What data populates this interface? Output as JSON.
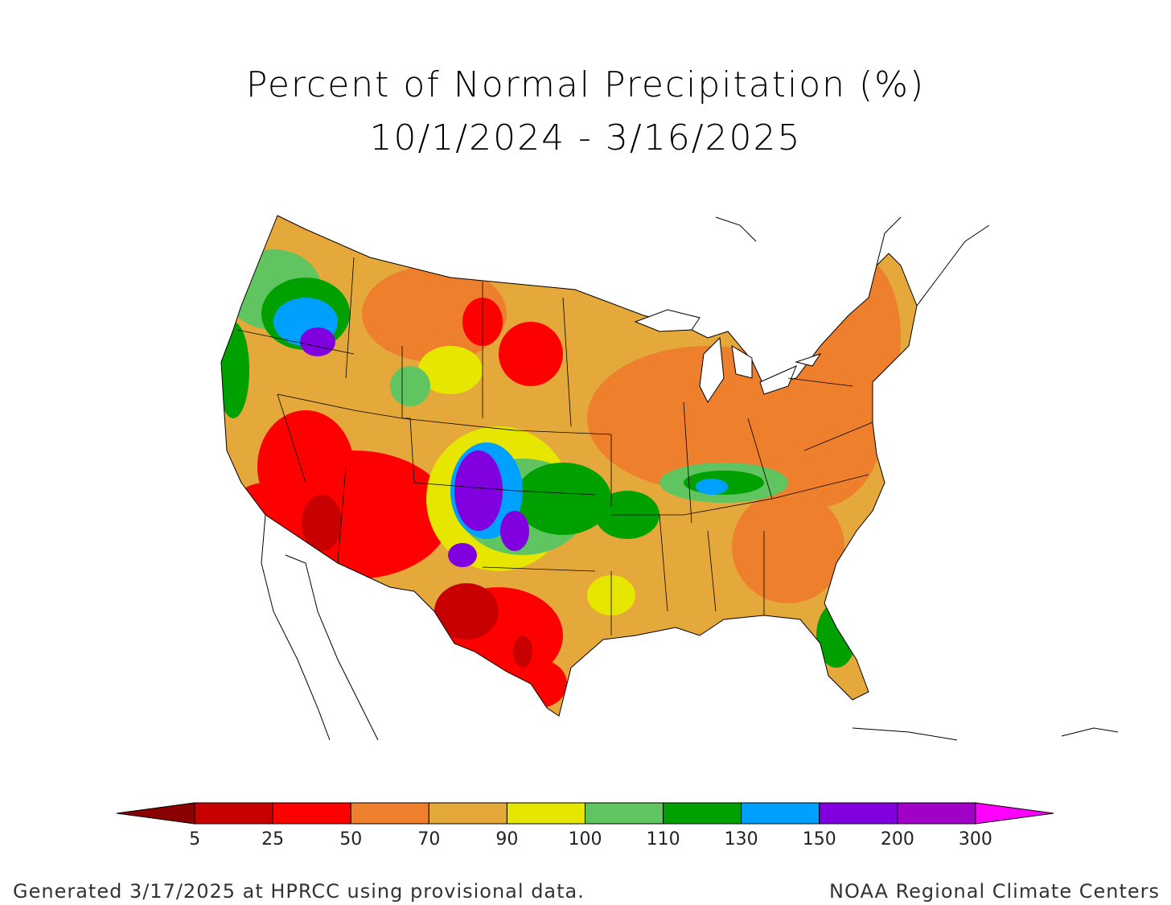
{
  "title": "Percent of Normal Precipitation (%)",
  "subtitle": "10/1/2024 - 3/16/2025",
  "footer": {
    "left": "Generated 3/17/2025 at HPRCC using provisional data.",
    "right": "NOAA Regional Climate Centers"
  },
  "legend": {
    "bins": [
      {
        "color": "#8b0000"
      },
      {
        "color": "#c80000"
      },
      {
        "color": "#ff0000"
      },
      {
        "color": "#ee7f2d"
      },
      {
        "color": "#e5a83a"
      },
      {
        "color": "#e6e600"
      },
      {
        "color": "#60c460"
      },
      {
        "color": "#00a000"
      },
      {
        "color": "#00a0ff"
      },
      {
        "color": "#8000e0"
      },
      {
        "color": "#a000c8"
      },
      {
        "color": "#ff00ff"
      }
    ],
    "tick_labels": [
      "5",
      "25",
      "50",
      "70",
      "90",
      "100",
      "110",
      "130",
      "150",
      "200",
      "300"
    ]
  },
  "map_data": {
    "region": "Contiguous United States",
    "variable": "Percent of normal precipitation",
    "regions_shaded": [
      {
        "area": "Southwest (AZ, southern NV, southern CA)",
        "bin": "25-50"
      },
      {
        "area": "West Texas / Rio Grande",
        "bin": "5-25"
      },
      {
        "area": "South Texas",
        "bin": "25-50"
      },
      {
        "area": "Pacific Northwest interior (eastern OR/WA)",
        "bin": "150-200"
      },
      {
        "area": "Northern California coast",
        "bin": "110-130"
      },
      {
        "area": "Northern Rockies / Great Plains",
        "bin": "70-90"
      },
      {
        "area": "Eastern New Mexico / Texas Panhandle",
        "bin": "150-200"
      },
      {
        "area": "Oklahoma / southern Kansas",
        "bin": "110-130"
      },
      {
        "area": "Ohio Valley (KY, southern IN)",
        "bin": "110-130"
      },
      {
        "area": "Gulf Coast / Southeast",
        "bin": "70-90"
      },
      {
        "area": "Mid-Atlantic / Carolinas",
        "bin": "50-70"
      },
      {
        "area": "Northeast",
        "bin": "50-70"
      },
      {
        "area": "Central Florida",
        "bin": "110-130"
      }
    ]
  }
}
